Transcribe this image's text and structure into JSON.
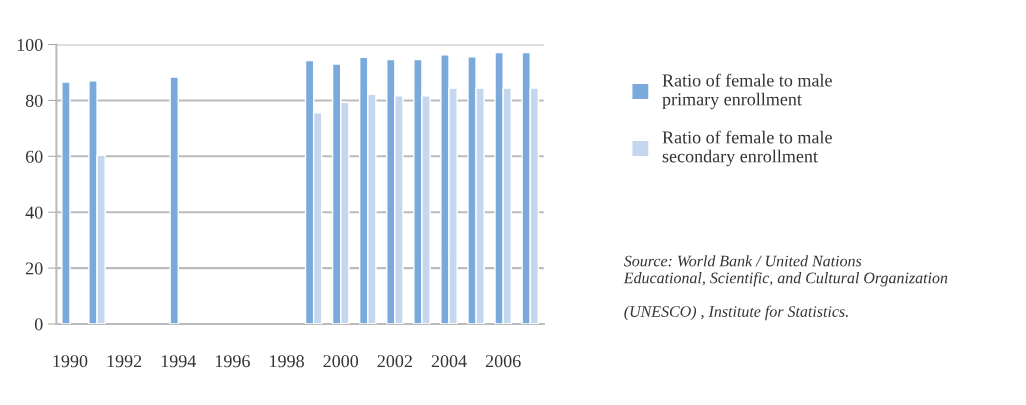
{
  "chart_data": {
    "type": "bar",
    "categories": [
      "1990",
      null,
      "1992",
      null,
      "1994",
      null,
      "1996",
      null,
      "1998",
      null,
      "2000",
      null,
      "2002",
      null,
      "2004",
      null,
      "2006",
      null
    ],
    "series": [
      {
        "name": "Ratio of female to male\nprimary enrollment",
        "color": "#7aaadb",
        "values": [
          86.6,
          87.0,
          null,
          null,
          88.4,
          null,
          null,
          null,
          null,
          94.3,
          93.0,
          95.4,
          94.6,
          94.6,
          96.3,
          95.6,
          97.1,
          97.1
        ]
      },
      {
        "name": "Ratio of female to male\nsecondary enrollment",
        "color": "#c5d7ee",
        "values": [
          null,
          60.4,
          null,
          null,
          null,
          null,
          null,
          null,
          null,
          75.6,
          79.3,
          82.2,
          81.7,
          81.7,
          84.4,
          84.4,
          84.4,
          84.4
        ]
      }
    ],
    "ylim": [
      0,
      100
    ],
    "yticks": [
      0,
      20,
      40,
      60,
      80,
      100
    ],
    "grid": "y",
    "legend": "right",
    "annotations": [
      "Source: World Bank / United Nations\nEducational, Scientific, and Cultural Organization\n\n(UNESCO) , Institute for Statistics."
    ]
  }
}
